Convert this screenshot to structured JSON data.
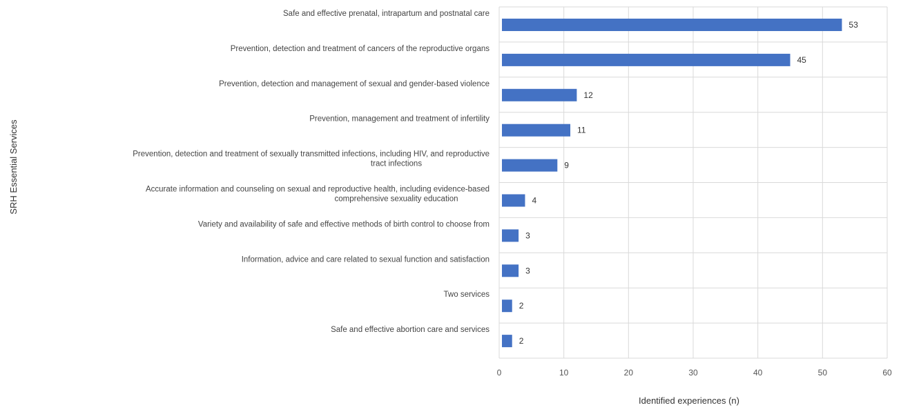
{
  "chart_data": {
    "type": "bar",
    "orientation": "horizontal",
    "title": "",
    "xlabel": "Identified experiences (n)",
    "ylabel": "SRH Essential Services",
    "xlim": [
      0,
      60
    ],
    "xticks": [
      "0",
      "10",
      "20",
      "30",
      "40",
      "50",
      "60"
    ],
    "grid": true,
    "bar_color": "#4472c4",
    "categories": [
      {
        "lines": [
          "Safe and effective prenatal, intrapartum and postnatal care"
        ]
      },
      {
        "lines": [
          "Prevention, detection and treatment of cancers of the reproductive organs"
        ]
      },
      {
        "lines": [
          "Prevention, detection and management of sexual and gender-based violence"
        ]
      },
      {
        "lines": [
          "Prevention, management and treatment of infertility"
        ]
      },
      {
        "lines": [
          "Prevention, detection and treatment of sexually transmitted infections, including HIV, and reproductive",
          "tract infections"
        ]
      },
      {
        "lines": [
          "Accurate information and counseling on sexual and reproductive health, including evidence-based",
          "comprehensive sexuality education"
        ]
      },
      {
        "lines": [
          "Variety and availability of safe and effective methods of birth control to choose from"
        ]
      },
      {
        "lines": [
          "Information, advice and care related to sexual function and satisfaction"
        ]
      },
      {
        "lines": [
          "Two services"
        ]
      },
      {
        "lines": [
          "Safe and effective abortion care and services"
        ]
      }
    ],
    "values": [
      53,
      45,
      12,
      11,
      9,
      4,
      3,
      3,
      2,
      2
    ],
    "value_labels": [
      "53",
      "45",
      "12",
      "11",
      "9",
      "4",
      "3",
      "3",
      "2",
      "2"
    ]
  }
}
